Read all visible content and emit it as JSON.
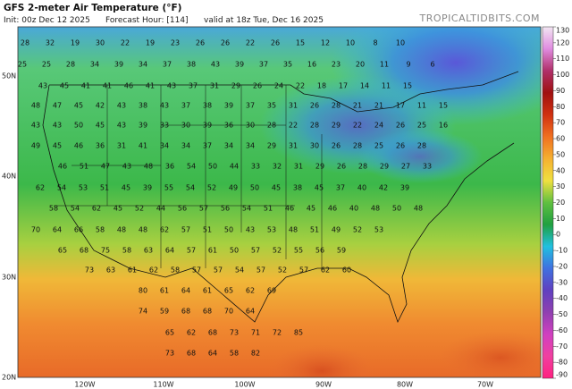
{
  "header": {
    "title": "GFS 2-meter Air Temperature (°F)",
    "init": "Init: 00z Dec 12 2025",
    "forecast_hour": "Forecast Hour: [114]",
    "valid": "valid at 18z Tue, Dec 16 2025",
    "brand": "TROPICALTIDBITS.COM"
  },
  "map": {
    "lat_labels": [
      "50N",
      "40N",
      "30N",
      "20N"
    ],
    "lon_labels": [
      "120W",
      "110W",
      "100W",
      "90W",
      "80W",
      "70W"
    ],
    "rows": [
      [
        28,
        32,
        19,
        30,
        22,
        19,
        23,
        26,
        26,
        22,
        26,
        15,
        12,
        10,
        8,
        10
      ],
      [
        25,
        25,
        28,
        34,
        39,
        34,
        37,
        38,
        43,
        39,
        37,
        35,
        16,
        23,
        20,
        11,
        9,
        6
      ],
      [
        43,
        45,
        41,
        41,
        46,
        41,
        43,
        37,
        31,
        29,
        26,
        24,
        22,
        18,
        17,
        14,
        11,
        15
      ],
      [
        48,
        47,
        45,
        42,
        43,
        38,
        43,
        37,
        38,
        39,
        37,
        35,
        31,
        26,
        28,
        21,
        21,
        17,
        11,
        15
      ],
      [
        43,
        43,
        50,
        45,
        43,
        39,
        33,
        30,
        39,
        36,
        30,
        28,
        22,
        28,
        29,
        22,
        24,
        26,
        25,
        16
      ],
      [
        49,
        45,
        46,
        36,
        31,
        41,
        34,
        34,
        37,
        34,
        34,
        29,
        31,
        30,
        26,
        28,
        25,
        26,
        28
      ],
      [
        46,
        51,
        47,
        43,
        48,
        36,
        54,
        50,
        44,
        33,
        32,
        31,
        29,
        26,
        28,
        29,
        27,
        33
      ],
      [
        62,
        54,
        53,
        51,
        45,
        39,
        55,
        54,
        52,
        49,
        50,
        45,
        38,
        45,
        37,
        40,
        42,
        39
      ],
      [
        58,
        54,
        62,
        45,
        52,
        44,
        56,
        57,
        56,
        54,
        51,
        46,
        45,
        46,
        40,
        48,
        50,
        48
      ],
      [
        70,
        64,
        66,
        58,
        48,
        48,
        62,
        57,
        51,
        50,
        43,
        53,
        48,
        51,
        49,
        52,
        53
      ],
      [
        65,
        68,
        75,
        58,
        63,
        64,
        57,
        61,
        50,
        57,
        52,
        55,
        56,
        59
      ],
      [
        73,
        63,
        61,
        62,
        58,
        57,
        57,
        54,
        57,
        52,
        57,
        62,
        60
      ],
      [
        80,
        61,
        64,
        61,
        65,
        62,
        69
      ],
      [
        74,
        59,
        68,
        68,
        70,
        64
      ],
      [
        65,
        62,
        68,
        73,
        71,
        72,
        85
      ],
      [
        73,
        68,
        64,
        58,
        82
      ]
    ]
  },
  "colorbar": {
    "ticks": [
      130,
      120,
      110,
      100,
      90,
      80,
      70,
      60,
      50,
      40,
      30,
      20,
      10,
      0,
      -10,
      -20,
      -30,
      -40,
      -50,
      -60,
      -70,
      -80,
      -90
    ],
    "colors": [
      "#f2e6f2",
      "#e08ce0",
      "#b0306a",
      "#a01010",
      "#d03010",
      "#f07020",
      "#f5b030",
      "#f0e040",
      "#60c040",
      "#20a040",
      "#20c0e0",
      "#4070e0",
      "#6040c0",
      "#9040b0",
      "#d040c0",
      "#f040a0",
      "#ff2080"
    ]
  }
}
